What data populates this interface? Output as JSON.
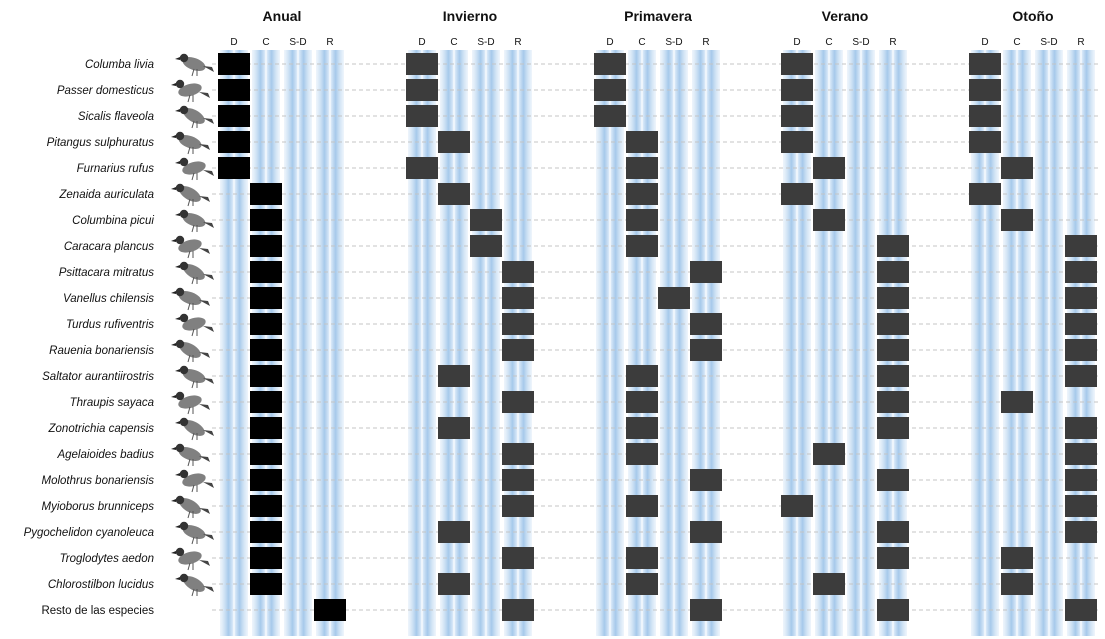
{
  "chart_data": {
    "type": "heatmap",
    "seasons": [
      "Anual",
      "Invierno",
      "Primavera",
      "Verano",
      "Otoño"
    ],
    "columns": [
      "D",
      "C",
      "S-D",
      "R"
    ],
    "species": [
      "Columba livia",
      "Passer domesticus",
      "Sicalis flaveola",
      "Pitangus sulphuratus",
      "Furnarius rufus",
      "Zenaida auriculata",
      "Columbina picui",
      "Caracara plancus",
      "Psittacara mitratus",
      "Vanellus chilensis",
      "Turdus rufiventris",
      "Rauenia bonariensis",
      "Saltator aurantiirostris",
      "Thraupis sayaca",
      "Zonotrichia capensis",
      "Agelaioides badius",
      "Molothrus bonariensis",
      "Myioborus brunniceps",
      "Pygochelidon cyanoleuca",
      "Troglodytes aedon",
      "Chlorostilbon lucidus",
      "Resto de las especies"
    ],
    "assignments": {
      "Anual": [
        "D",
        "D",
        "D",
        "D",
        "D",
        "C",
        "C",
        "C",
        "C",
        "C",
        "C",
        "C",
        "C",
        "C",
        "C",
        "C",
        "C",
        "C",
        "C",
        "C",
        "C",
        "R"
      ],
      "Invierno": [
        "D",
        "D",
        "D",
        "C",
        "D",
        "C",
        "S-D",
        "S-D",
        "R",
        "R",
        "R",
        "R",
        "C",
        "R",
        "C",
        "R",
        "R",
        "R",
        "C",
        "R",
        "C",
        "R"
      ],
      "Primavera": [
        "D",
        "D",
        "D",
        "C",
        "C",
        "C",
        "C",
        "C",
        "R",
        "S-D",
        "R",
        "R",
        "C",
        "C",
        "C",
        "C",
        "R",
        "C",
        "R",
        "C",
        "C",
        "R"
      ],
      "Verano": [
        "D",
        "D",
        "D",
        "D",
        "C",
        "D",
        "C",
        "R",
        "R",
        "R",
        "R",
        "R",
        "R",
        "R",
        "R",
        "C",
        "R",
        "D",
        "R",
        "R",
        "C",
        "R"
      ],
      "Otoño": [
        "D",
        "D",
        "D",
        "D",
        "C",
        "D",
        "C",
        "R",
        "R",
        "R",
        "R",
        "R",
        "R",
        "C",
        "R",
        "R",
        "R",
        "R",
        "R",
        "C",
        "C",
        "R"
      ]
    }
  },
  "colors": {
    "lane": "#a9ccec",
    "lane_core": "#e6f1fb",
    "cell_annual": "#000000",
    "cell_season": "#3c3c3c",
    "gridline": "#c4c4c4",
    "bird": "#555555"
  },
  "icons": [
    "bird-illustration-icon"
  ]
}
